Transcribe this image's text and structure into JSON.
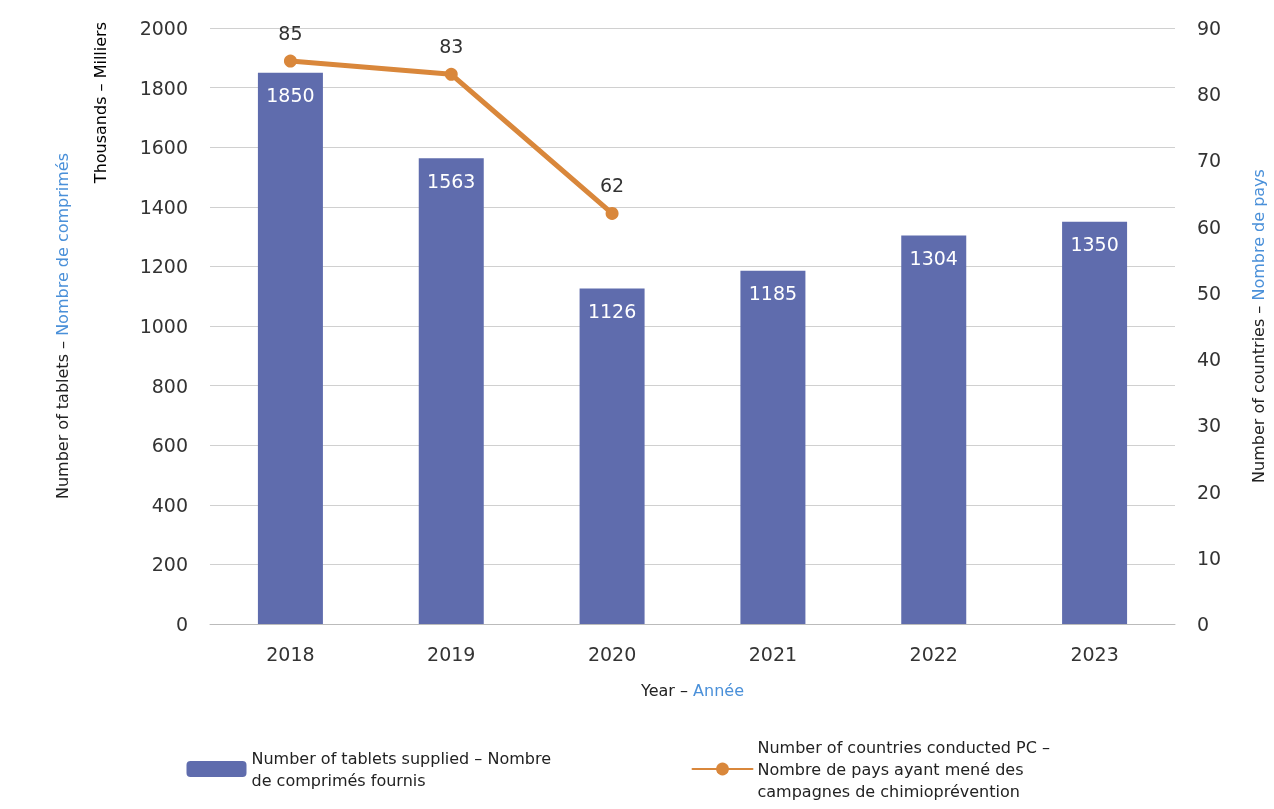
{
  "chart_data": {
    "type": "bar",
    "categories": [
      "2018",
      "2019",
      "2020",
      "2021",
      "2022",
      "2023"
    ],
    "xlabel": "Year – Année",
    "ylabel": "Number of tablets – Nombre de comprimés",
    "y2label": "Number of countries – Nombre de pays",
    "annotations": [
      "Thousands – Milliers"
    ],
    "series": [
      {
        "name": "Number of tablets supplied – Nombre de comprimés fournis",
        "color": "#5f6cad",
        "values": [
          1850,
          1563,
          1126,
          1185,
          1304,
          1350
        ]
      },
      {
        "name": "Number of countries conducted PC – Nombre de pays ayant mené des campagnes de chimioprévention",
        "type": "line",
        "axis": "y2",
        "color": "#d9873b",
        "marker": "circle",
        "values": [
          85,
          83,
          62,
          null,
          null,
          null
        ]
      }
    ],
    "ylim": [
      0,
      2000
    ],
    "yticks": [
      0,
      200,
      400,
      600,
      800,
      1000,
      1200,
      1400,
      1600,
      1800,
      2000
    ],
    "y2lim": [
      0,
      90
    ],
    "y2ticks": [
      0,
      10,
      20,
      30,
      40,
      50,
      60,
      70,
      80,
      90
    ],
    "grid": "y",
    "legend": "bottom",
    "data_labels": true
  }
}
